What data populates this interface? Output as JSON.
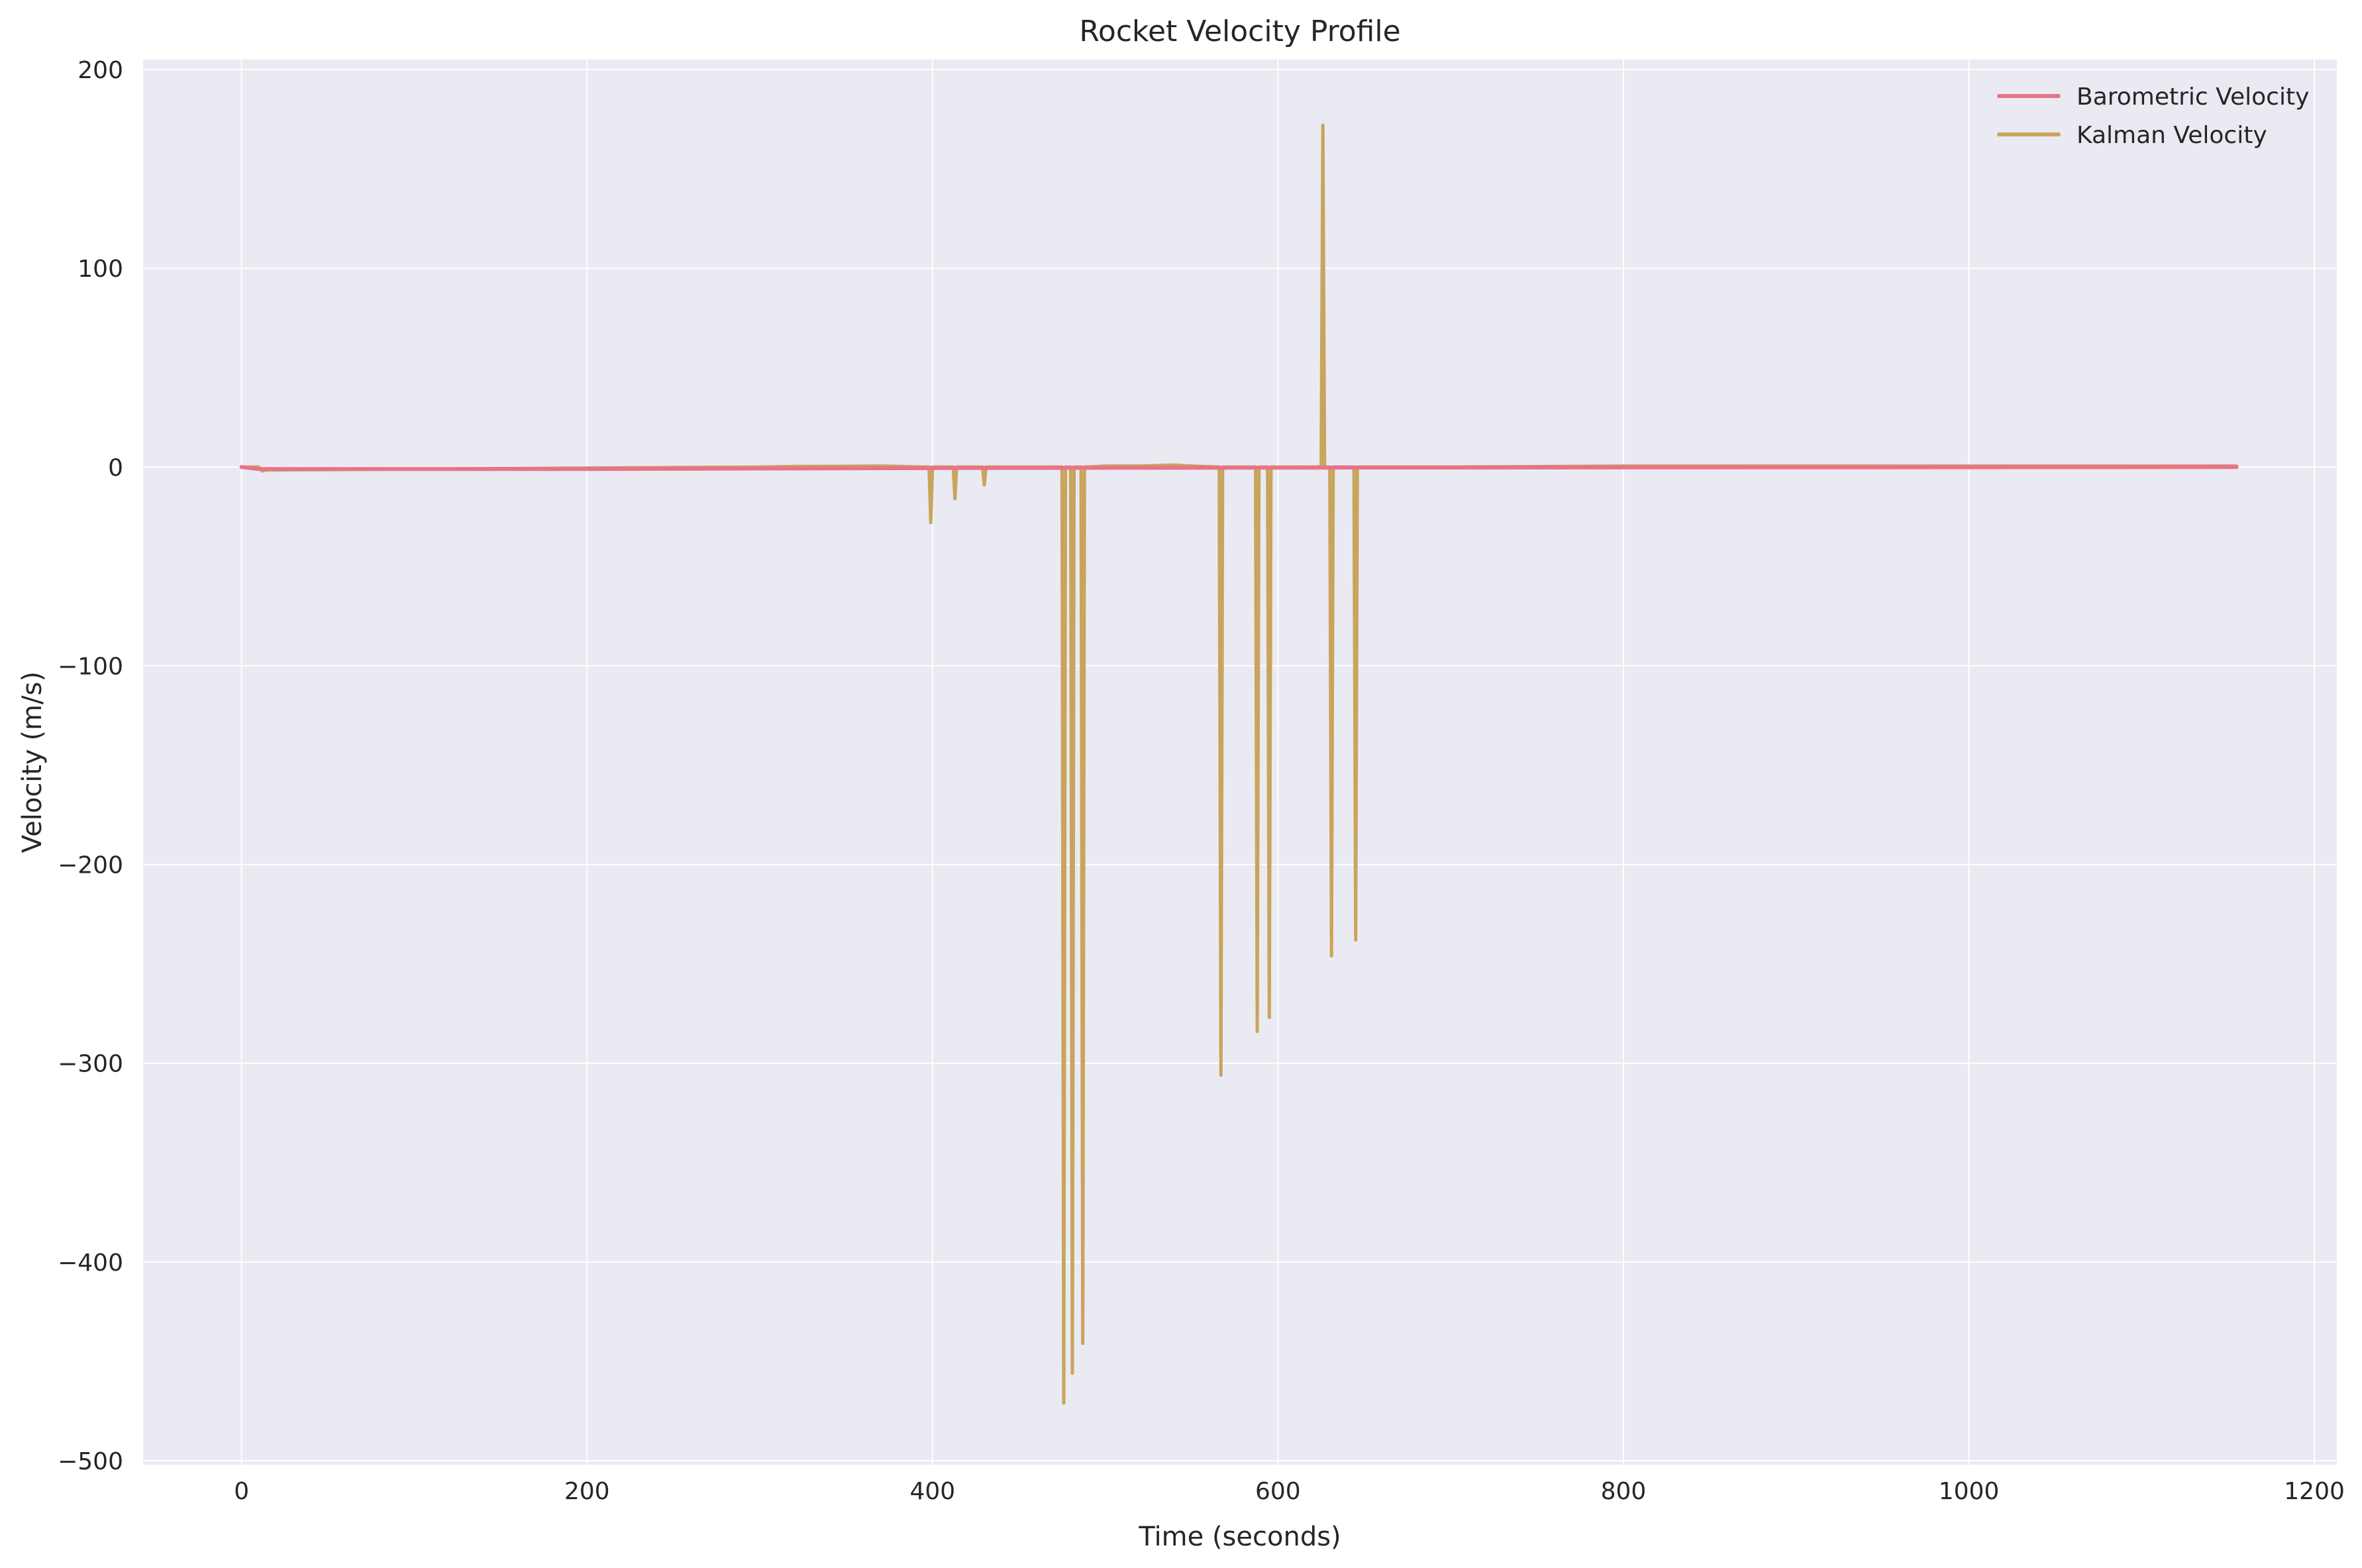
{
  "chart_data": {
    "type": "line",
    "title": "Rocket Velocity Profile",
    "xlabel": "Time (seconds)",
    "ylabel": "Velocity (m/s)",
    "xlim": [
      -57,
      1213
    ],
    "ylim": [
      -502,
      205
    ],
    "xticks": [
      0,
      200,
      400,
      600,
      800,
      1000,
      1200
    ],
    "yticks": [
      200,
      100,
      0,
      -100,
      -200,
      -300,
      -400,
      -500
    ],
    "xtick_labels": [
      "0",
      "200",
      "400",
      "600",
      "800",
      "1000",
      "1200"
    ],
    "ytick_labels": [
      "200",
      "100",
      "0",
      "−100",
      "−200",
      "−300",
      "−400",
      "−500"
    ],
    "grid": true,
    "legend_position": "top-right",
    "colors": {
      "plot_background": "#eaeaf2",
      "grid": "#ffffff",
      "barometric": "#e8728a",
      "kalman": "#c9a45c"
    },
    "series": [
      {
        "name": "Barometric Velocity",
        "color": "#e8728a",
        "x": [
          0,
          10,
          200,
          400,
          600,
          800,
          1000,
          1155
        ],
        "y": [
          0,
          -1,
          -1,
          -0.5,
          -0.3,
          -0.2,
          -0.1,
          0
        ]
      },
      {
        "name": "Kalman Velocity",
        "color": "#c9a45c",
        "x": [
          0,
          10,
          12,
          14,
          100,
          200,
          300,
          320,
          330,
          370,
          398,
          399,
          400,
          412,
          413,
          414,
          429,
          430,
          431,
          475,
          476,
          477,
          480,
          481,
          482,
          486,
          487,
          488,
          500,
          520,
          540,
          550,
          566,
          567,
          568,
          587,
          588,
          589,
          594,
          595,
          596,
          625,
          626,
          627,
          630,
          631,
          632,
          644,
          645,
          646,
          700,
          800,
          1000,
          1155
        ],
        "y": [
          0,
          0,
          -2,
          -1.5,
          -1,
          -0.5,
          0,
          0.3,
          0.3,
          0.5,
          0,
          -28,
          0,
          0,
          -16,
          0,
          0,
          -9,
          0,
          0,
          -471,
          0,
          0,
          -456,
          0,
          0,
          -441,
          0,
          0.5,
          0.5,
          1,
          0.5,
          0,
          -306,
          0,
          0,
          -284,
          0,
          0,
          -277,
          0,
          0,
          172,
          0,
          0,
          -246,
          0,
          0,
          -238,
          0,
          0,
          0.5,
          0.5,
          0.5
        ]
      }
    ]
  }
}
